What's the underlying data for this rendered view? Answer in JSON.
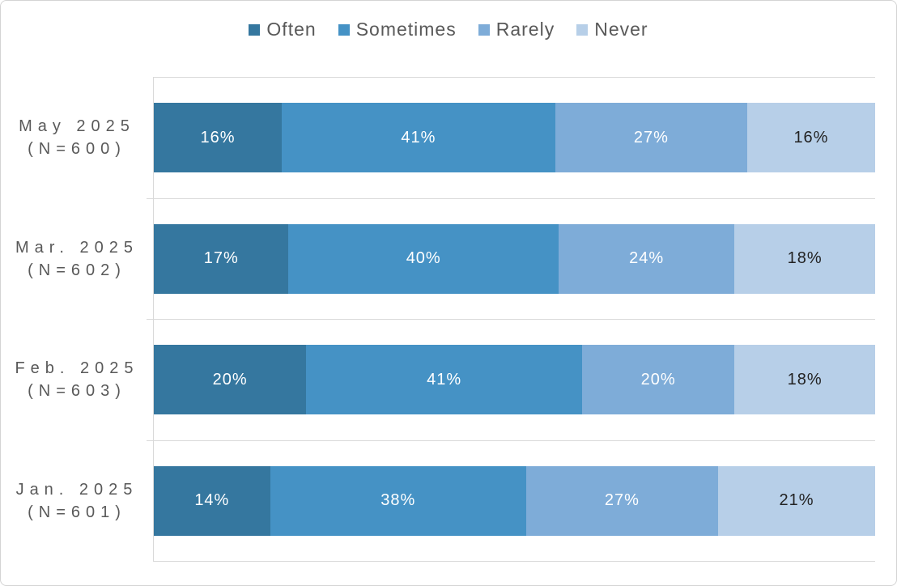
{
  "chart_data": {
    "type": "bar",
    "variant": "100% stacked horizontal bar",
    "title": "",
    "categories": [
      "May 2025 (N=600)",
      "Mar. 2025 (N=602)",
      "Feb. 2025 (N=603)",
      "Jan. 2025 (N=601)"
    ],
    "series": [
      {
        "name": "Often",
        "color": "#35779F",
        "value_text_color": "#FFFFFF",
        "values": [
          16,
          17,
          20,
          14
        ]
      },
      {
        "name": "Sometimes",
        "color": "#4592C5",
        "value_text_color": "#FFFFFF",
        "values": [
          41,
          40,
          41,
          38
        ]
      },
      {
        "name": "Rarely",
        "color": "#7EACD8",
        "value_text_color": "#FFFFFF",
        "values": [
          27,
          24,
          20,
          27
        ]
      },
      {
        "name": "Never",
        "color": "#B7CFE8",
        "value_text_color": "#222222",
        "values": [
          16,
          18,
          18,
          21
        ]
      }
    ],
    "value_suffix": "%",
    "xlim": [
      0,
      100
    ],
    "legend_position": "top-center",
    "legend_text_color": "#595959",
    "axis_label_color": "#595959",
    "gridlines": "horizontal-between-categories",
    "gridline_color": "#D9D9D9"
  },
  "rows": [
    {
      "label_line1": "May 2025",
      "label_line2": "(N=600)",
      "segments": [
        {
          "series": "Often",
          "value": 16,
          "text": "16%"
        },
        {
          "series": "Sometimes",
          "value": 41,
          "text": "41%"
        },
        {
          "series": "Rarely",
          "value": 27,
          "text": "27%"
        },
        {
          "series": "Never",
          "value": 16,
          "text": "16%"
        }
      ]
    },
    {
      "label_line1": "Mar. 2025",
      "label_line2": "(N=602)",
      "segments": [
        {
          "series": "Often",
          "value": 17,
          "text": "17%"
        },
        {
          "series": "Sometimes",
          "value": 40,
          "text": "40%"
        },
        {
          "series": "Rarely",
          "value": 24,
          "text": "24%"
        },
        {
          "series": "Never",
          "value": 18,
          "text": "18%"
        }
      ]
    },
    {
      "label_line1": "Feb. 2025",
      "label_line2": "(N=603)",
      "segments": [
        {
          "series": "Often",
          "value": 20,
          "text": "20%"
        },
        {
          "series": "Sometimes",
          "value": 41,
          "text": "41%"
        },
        {
          "series": "Rarely",
          "value": 20,
          "text": "20%"
        },
        {
          "series": "Never",
          "value": 18,
          "text": "18%"
        }
      ]
    },
    {
      "label_line1": "Jan. 2025",
      "label_line2": "(N=601)",
      "segments": [
        {
          "series": "Often",
          "value": 14,
          "text": "14%"
        },
        {
          "series": "Sometimes",
          "value": 38,
          "text": "38%"
        },
        {
          "series": "Rarely",
          "value": 27,
          "text": "27%"
        },
        {
          "series": "Never",
          "value": 21,
          "text": "21%"
        }
      ]
    }
  ]
}
